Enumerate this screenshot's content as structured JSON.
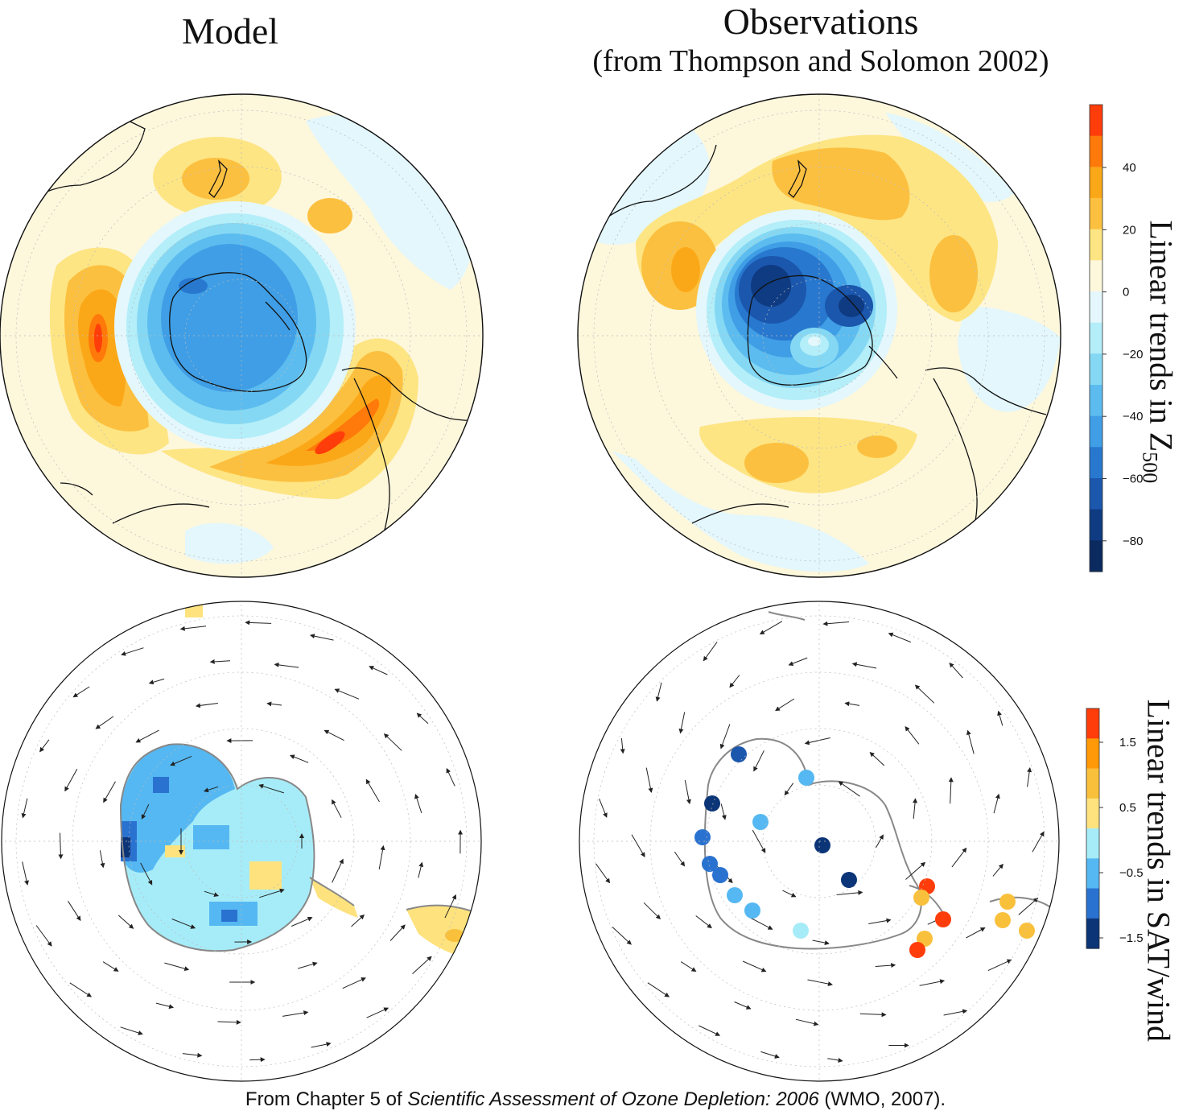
{
  "titles": {
    "model": "Model",
    "observations": "Observations",
    "observations_source": "(from Thompson and Solomon 2002)"
  },
  "colorbars": {
    "z500": {
      "label_main": "Linear trends in Z",
      "label_sub": "500",
      "ticks": [
        "40",
        "20",
        "0",
        "−20",
        "−40",
        "−60",
        "−80"
      ],
      "colors": [
        "#ff3d0a",
        "#ff7a0a",
        "#fba818",
        "#fcc040",
        "#fde583",
        "#fdf7dc",
        "#e3f7fc",
        "#b3eef9",
        "#85d8f3",
        "#5cbcef",
        "#3f9ee5",
        "#2878cf",
        "#1b57ad",
        "#0f3b82",
        "#0a2a60"
      ]
    },
    "sat": {
      "label": "Linear trends in SAT/wind",
      "ticks": [
        "1.5",
        "0.5",
        "−0.5",
        "−1.5"
      ],
      "colors": [
        "#ff3d0a",
        "#ff9908",
        "#f9c03c",
        "#fde27e",
        "#a6ecf8",
        "#55b8f2",
        "#2a72d0",
        "#0c3578"
      ]
    }
  },
  "palette": {
    "warm_1": "#fde583",
    "warm_2": "#fcc040",
    "warm_3": "#fba818",
    "warm_4": "#ff7a0a",
    "warm_5": "#ff3d0a",
    "neutral": "#fdf7dc",
    "cool_0": "#e3f7fc",
    "cool_1": "#b3eef9",
    "cool_2": "#85d8f3",
    "cool_3": "#5cbcef",
    "cool_4": "#3f9ee5",
    "cool_5": "#2878cf",
    "cool_6": "#1b57ad",
    "cool_7": "#0f3b82"
  },
  "stations": {
    "cool": [
      "#1b57ad",
      "#0c3578",
      "#55b8f2",
      "#2a72d0",
      "#55b8f2",
      "#0c3578",
      "#0c3578",
      "#a6ecf8",
      "#2a72d0",
      "#55b8f2",
      "#55b8f2",
      "#2a72d0"
    ],
    "warm": [
      "#ff3d0a",
      "#f9c03c",
      "#ff3d0a",
      "#f9c03c",
      "#ff3d0a",
      "#f9c03c",
      "#f9c03c",
      "#f9c03c"
    ]
  },
  "caption": {
    "prefix": "From Chapter 5 of ",
    "italic": "Scientific Assessment of Ozone Depletion: 2006",
    "suffix": " (WMO, 2007)."
  }
}
